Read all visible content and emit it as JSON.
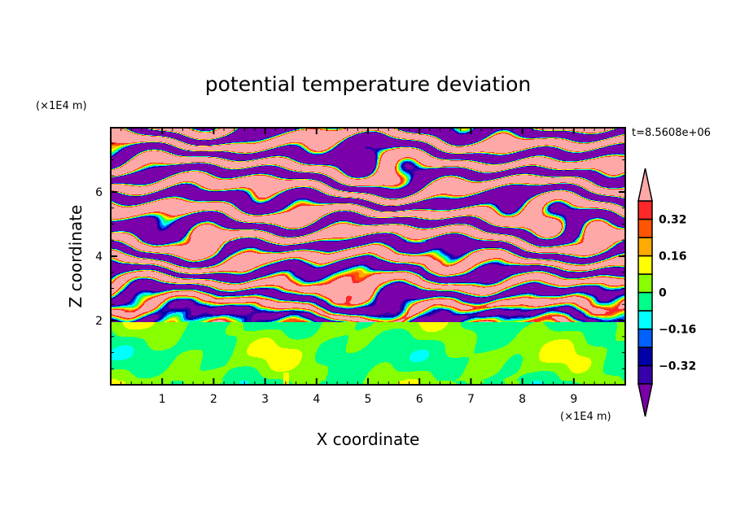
{
  "chart_data": {
    "type": "heatmap",
    "title": "potential temperature deviation",
    "xlabel": "X coordinate",
    "ylabel": "Z coordinate",
    "x_unit": "(×1E4 m)",
    "y_unit": "(×1E4 m)",
    "time_label": "t=8.5608e+06",
    "xlim": [
      0,
      10
    ],
    "ylim": [
      0,
      8
    ],
    "xticks": [
      1,
      2,
      3,
      4,
      5,
      6,
      7,
      8,
      9
    ],
    "yticks": [
      2,
      4,
      6
    ],
    "xtick_labels": [
      "1",
      "2",
      "3",
      "4",
      "5",
      "6",
      "7",
      "8",
      "9"
    ],
    "ytick_labels": [
      "2",
      "4",
      "6"
    ],
    "levels": [
      -0.4,
      -0.32,
      -0.24,
      -0.16,
      -0.08,
      0,
      0.08,
      0.16,
      0.24,
      0.32,
      0.4
    ],
    "colorbar_labels": [
      {
        "value": 0.32,
        "text": "0.32"
      },
      {
        "value": 0.16,
        "text": "0.16"
      },
      {
        "value": 0,
        "text": "0"
      },
      {
        "value": -0.16,
        "text": "−0.16"
      },
      {
        "value": -0.32,
        "text": "−0.32"
      }
    ],
    "colors": [
      "#7a00aa",
      "#3600aa",
      "#0000a8",
      "#0060ff",
      "#00ffff",
      "#00ff88",
      "#88ff00",
      "#ffff00",
      "#ffaa00",
      "#ff5500",
      "#ff2828",
      "#ffa8a8"
    ],
    "description_of_field": {
      "lower_layer_z_below": 2,
      "lower_layer_range": [
        -0.08,
        0.08
      ],
      "upper_layer_pattern": "horizontal layered bands saturating beyond ±0.4"
    }
  }
}
